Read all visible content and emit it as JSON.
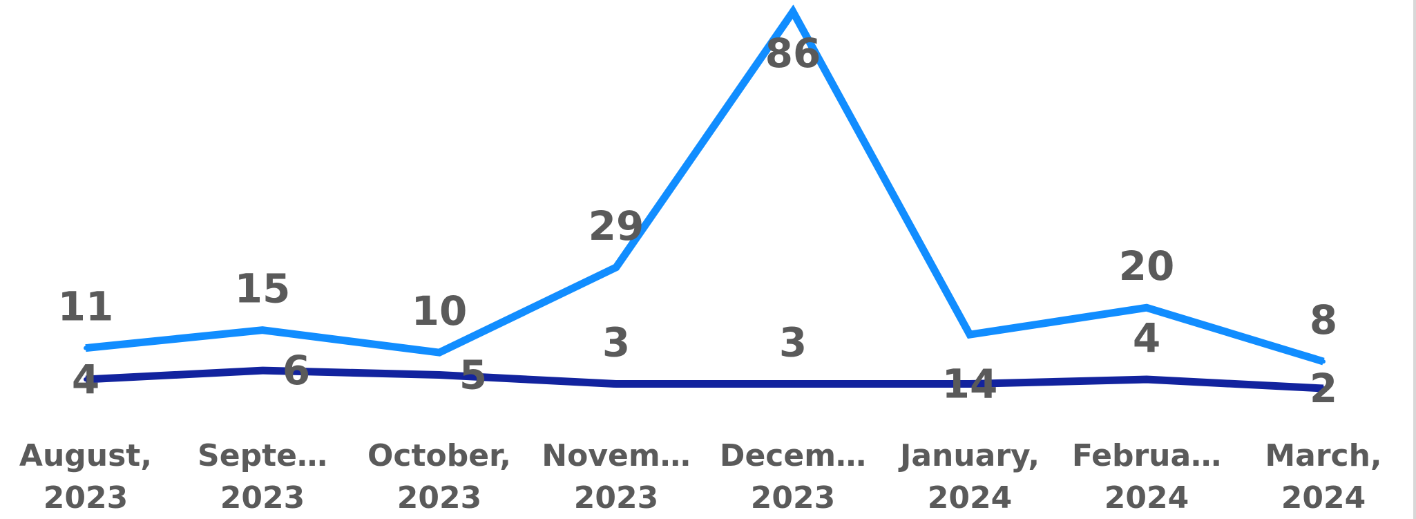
{
  "chart_data": {
    "type": "line",
    "categories": [
      [
        "August,",
        "2023"
      ],
      [
        "Septe…",
        "2023"
      ],
      [
        "October,",
        "2023"
      ],
      [
        "Novem…",
        "2023"
      ],
      [
        "Decem…",
        "2023"
      ],
      [
        "January,",
        "2024"
      ],
      [
        "Februa…",
        "2024"
      ],
      [
        "March,",
        "2024"
      ]
    ],
    "series": [
      {
        "values": [
          11,
          15,
          10,
          29,
          86,
          14,
          20,
          8
        ],
        "color": "#118dff"
      },
      {
        "values": [
          4,
          6,
          5,
          3,
          3,
          3,
          4,
          2
        ],
        "color": "#12239e"
      }
    ],
    "data_labels": {
      "upper": [
        "11",
        "15",
        "10",
        "29",
        "86",
        "",
        "20",
        "8"
      ],
      "lower": [
        "4",
        "6",
        "5",
        "3",
        "3",
        "14",
        "4",
        "2"
      ]
    },
    "ylim": [
      0,
      86
    ],
    "grid": false,
    "legend": "none"
  }
}
